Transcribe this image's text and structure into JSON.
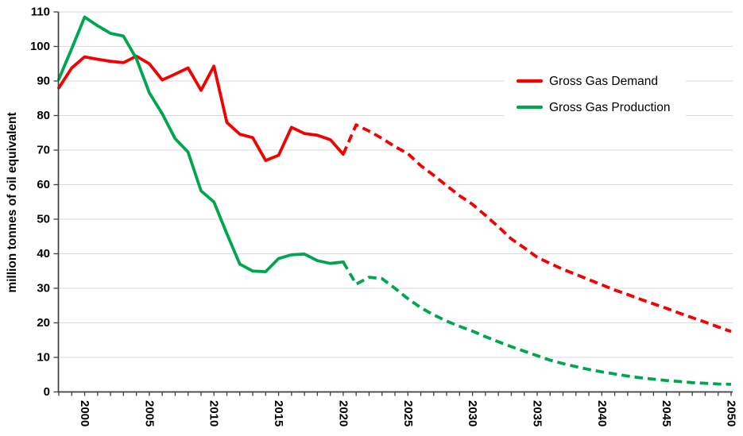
{
  "chart_data": {
    "type": "line",
    "title": "",
    "xlabel": "",
    "ylabel": "million tonnes of oil equivalent",
    "xlim": [
      1998,
      2050
    ],
    "ylim": [
      0,
      110
    ],
    "grid": "horizontal-only",
    "legend_position": "inside-upper-right",
    "projection_start_year": 2020,
    "projection_style": "dashed",
    "y_ticks": [
      0,
      10,
      20,
      30,
      40,
      50,
      60,
      70,
      80,
      90,
      100,
      110
    ],
    "x_tick_labels": [
      "2000",
      "2005",
      "2010",
      "2015",
      "2020",
      "2025",
      "2030",
      "2035",
      "2040",
      "2045",
      "2050"
    ],
    "x_minor_tick_every_years": 1,
    "colors": {
      "demand": "#F40000",
      "production": "#00A64F",
      "grid": "#DADADA",
      "axis": "#3F3F3F",
      "text": "#000000",
      "legend_background": "#FFFFFF"
    },
    "x": [
      1998,
      1999,
      2000,
      2001,
      2002,
      2003,
      2004,
      2005,
      2006,
      2007,
      2008,
      2009,
      2010,
      2011,
      2012,
      2013,
      2014,
      2015,
      2016,
      2017,
      2018,
      2019,
      2020,
      2021,
      2022,
      2023,
      2024,
      2025,
      2026,
      2027,
      2028,
      2029,
      2030,
      2031,
      2032,
      2033,
      2034,
      2035,
      2036,
      2037,
      2038,
      2039,
      2040,
      2041,
      2042,
      2043,
      2044,
      2045,
      2046,
      2047,
      2048,
      2049,
      2050
    ],
    "series": [
      {
        "name": "Gross Gas Demand",
        "color_key": "demand",
        "values": [
          88,
          93.8,
          97,
          96.3,
          95.7,
          95.3,
          97.2,
          95,
          90.3,
          92,
          93.8,
          87.3,
          94.3,
          78,
          74.6,
          73.6,
          67,
          68.5,
          76.6,
          74.8,
          74.3,
          73,
          68.8,
          77.3,
          75.5,
          73.4,
          71,
          69,
          65.5,
          62.7,
          59.7,
          56.8,
          54.3,
          51.1,
          47.8,
          44.3,
          41.7,
          39,
          37.2,
          35.5,
          34,
          32.5,
          31,
          29.5,
          28.2,
          26.8,
          25.5,
          24.2,
          22.8,
          21.5,
          20.2,
          18.8,
          17.5
        ]
      },
      {
        "name": "Gross Gas Production",
        "color_key": "production",
        "values": [
          90.5,
          99.4,
          108.5,
          106,
          103.8,
          103,
          96.5,
          86.6,
          80.5,
          73.3,
          69.4,
          58.2,
          55,
          45.8,
          37,
          35,
          34.8,
          38.6,
          39.7,
          39.9,
          38,
          37.2,
          37.6,
          31.2,
          33.2,
          32.8,
          30,
          27,
          24.4,
          22.3,
          20.5,
          19,
          17.6,
          16,
          14.5,
          13.1,
          11.8,
          10.5,
          9.2,
          8.2,
          7.3,
          6.5,
          5.8,
          5.2,
          4.6,
          4.1,
          3.7,
          3.3,
          3,
          2.7,
          2.5,
          2.3,
          2.2
        ]
      }
    ]
  }
}
